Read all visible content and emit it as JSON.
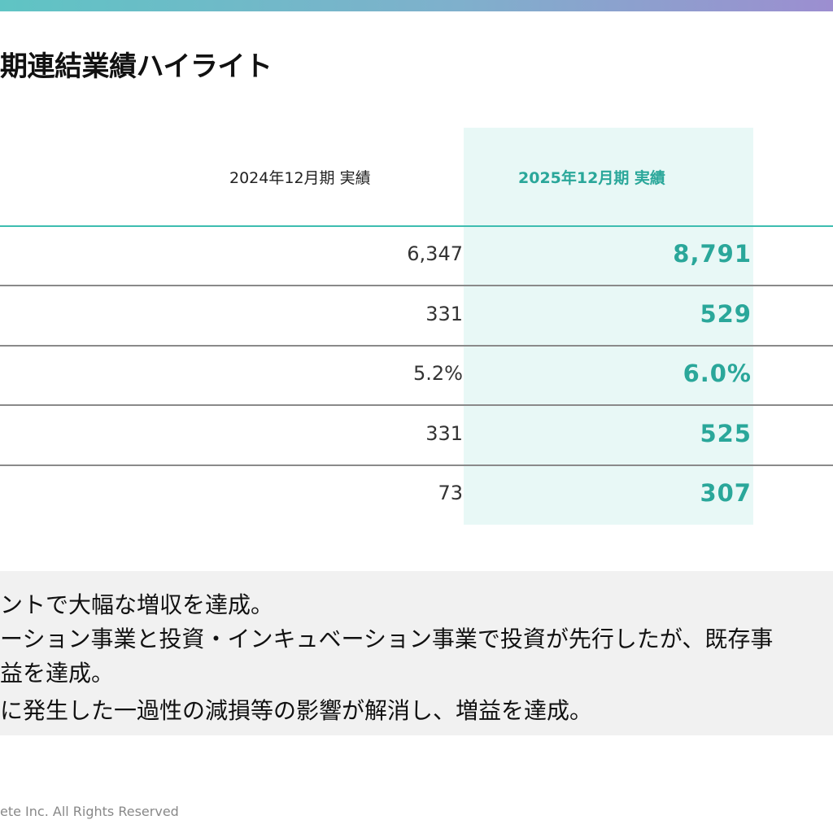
{
  "header": {
    "accent_gradient": [
      "#5fc4c4",
      "#9c8ed0"
    ],
    "title": "期連結業績ハイライト"
  },
  "table": {
    "columns": {
      "previous": "2024年12月期 実績",
      "current": "2025年12月期 実績"
    },
    "current_color": "#2aa79a",
    "rows": [
      {
        "previous": "6,347",
        "current": "8,791"
      },
      {
        "previous": "331",
        "current": "529"
      },
      {
        "previous": "5.2%",
        "current": "6.0%"
      },
      {
        "previous": "331",
        "current": "525"
      },
      {
        "previous": "73",
        "current": "307"
      }
    ]
  },
  "notes": {
    "lines": [
      "ントで大幅な増収を達成。",
      "ーション事業と投資・インキュベーション事業で投資が先行したが、既存事",
      "益を達成。",
      "に発生した一過性の減損等の影響が解消し、増益を達成。"
    ]
  },
  "footer": {
    "copyright": "ete Inc. All Rights Reserved"
  }
}
